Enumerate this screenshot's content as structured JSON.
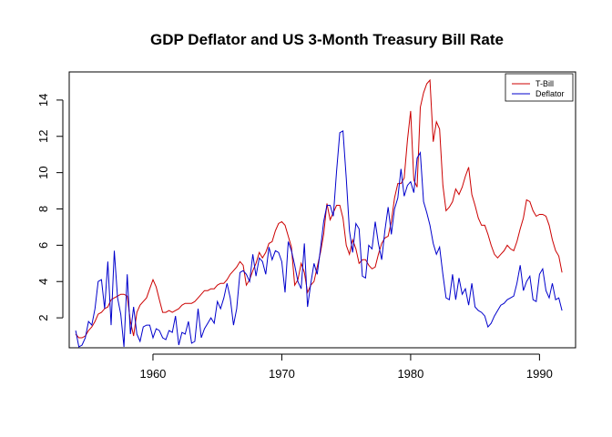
{
  "chart_data": {
    "type": "line",
    "title": "GDP Deflator and US 3-Month Treasury Bill Rate",
    "xlabel": "",
    "ylabel": "",
    "xlim": [
      1953.5,
      1992.8
    ],
    "ylim": [
      0.35,
      15.55
    ],
    "x_ticks": [
      1960,
      1970,
      1980,
      1990
    ],
    "y_ticks": [
      2,
      4,
      6,
      8,
      10,
      12,
      14
    ],
    "legend_position": "top-right",
    "series": [
      {
        "name": "T-Bill",
        "color": "#CC0000",
        "points": [
          [
            1954.0,
            1.1
          ],
          [
            1954.25,
            0.9
          ],
          [
            1954.5,
            0.9
          ],
          [
            1954.75,
            1.0
          ],
          [
            1955.0,
            1.3
          ],
          [
            1955.25,
            1.5
          ],
          [
            1955.5,
            1.8
          ],
          [
            1955.75,
            2.2
          ],
          [
            1956.0,
            2.3
          ],
          [
            1956.25,
            2.5
          ],
          [
            1956.5,
            2.6
          ],
          [
            1956.75,
            3.0
          ],
          [
            1957.0,
            3.1
          ],
          [
            1957.25,
            3.2
          ],
          [
            1957.5,
            3.3
          ],
          [
            1957.75,
            3.3
          ],
          [
            1958.0,
            3.2
          ],
          [
            1958.25,
            1.8
          ],
          [
            1958.5,
            1.0
          ],
          [
            1958.75,
            2.3
          ],
          [
            1959.0,
            2.7
          ],
          [
            1959.25,
            2.9
          ],
          [
            1959.5,
            3.1
          ],
          [
            1959.75,
            3.6
          ],
          [
            1960.0,
            4.1
          ],
          [
            1960.25,
            3.7
          ],
          [
            1960.5,
            3.0
          ],
          [
            1960.75,
            2.3
          ],
          [
            1961.0,
            2.3
          ],
          [
            1961.25,
            2.4
          ],
          [
            1961.5,
            2.3
          ],
          [
            1961.75,
            2.4
          ],
          [
            1962.0,
            2.5
          ],
          [
            1962.25,
            2.7
          ],
          [
            1962.5,
            2.8
          ],
          [
            1962.75,
            2.8
          ],
          [
            1963.0,
            2.8
          ],
          [
            1963.25,
            2.9
          ],
          [
            1963.5,
            3.1
          ],
          [
            1963.75,
            3.3
          ],
          [
            1964.0,
            3.5
          ],
          [
            1964.25,
            3.5
          ],
          [
            1964.5,
            3.6
          ],
          [
            1964.75,
            3.6
          ],
          [
            1965.0,
            3.8
          ],
          [
            1965.25,
            3.9
          ],
          [
            1965.5,
            3.9
          ],
          [
            1965.75,
            4.1
          ],
          [
            1966.0,
            4.4
          ],
          [
            1966.25,
            4.6
          ],
          [
            1966.5,
            4.8
          ],
          [
            1966.75,
            5.1
          ],
          [
            1967.0,
            4.9
          ],
          [
            1967.25,
            3.8
          ],
          [
            1967.5,
            4.1
          ],
          [
            1967.75,
            4.6
          ],
          [
            1968.0,
            5.0
          ],
          [
            1968.25,
            5.6
          ],
          [
            1968.5,
            5.3
          ],
          [
            1968.75,
            5.6
          ],
          [
            1969.0,
            6.1
          ],
          [
            1969.25,
            6.2
          ],
          [
            1969.5,
            6.8
          ],
          [
            1969.75,
            7.2
          ],
          [
            1970.0,
            7.3
          ],
          [
            1970.25,
            7.1
          ],
          [
            1970.5,
            6.5
          ],
          [
            1970.75,
            5.9
          ],
          [
            1971.0,
            3.8
          ],
          [
            1971.25,
            4.1
          ],
          [
            1971.5,
            5.0
          ],
          [
            1971.75,
            4.5
          ],
          [
            1972.0,
            3.4
          ],
          [
            1972.25,
            3.8
          ],
          [
            1972.5,
            4.0
          ],
          [
            1972.75,
            4.8
          ],
          [
            1973.0,
            5.6
          ],
          [
            1973.25,
            6.6
          ],
          [
            1973.5,
            8.3
          ],
          [
            1973.75,
            7.4
          ],
          [
            1974.0,
            7.8
          ],
          [
            1974.25,
            8.2
          ],
          [
            1974.5,
            8.2
          ],
          [
            1974.75,
            7.5
          ],
          [
            1975.0,
            6.0
          ],
          [
            1975.25,
            5.5
          ],
          [
            1975.5,
            6.3
          ],
          [
            1975.75,
            5.8
          ],
          [
            1976.0,
            5.0
          ],
          [
            1976.25,
            5.2
          ],
          [
            1976.5,
            5.2
          ],
          [
            1976.75,
            4.9
          ],
          [
            1977.0,
            4.7
          ],
          [
            1977.25,
            4.8
          ],
          [
            1977.5,
            5.5
          ],
          [
            1977.75,
            6.1
          ],
          [
            1978.0,
            6.4
          ],
          [
            1978.25,
            6.5
          ],
          [
            1978.5,
            7.3
          ],
          [
            1978.75,
            8.6
          ],
          [
            1979.0,
            9.4
          ],
          [
            1979.25,
            9.4
          ],
          [
            1979.5,
            9.7
          ],
          [
            1979.75,
            11.8
          ],
          [
            1980.0,
            13.4
          ],
          [
            1980.25,
            9.6
          ],
          [
            1980.5,
            9.2
          ],
          [
            1980.75,
            13.6
          ],
          [
            1981.0,
            14.4
          ],
          [
            1981.25,
            14.9
          ],
          [
            1981.5,
            15.1
          ],
          [
            1981.75,
            11.7
          ],
          [
            1982.0,
            12.8
          ],
          [
            1982.25,
            12.4
          ],
          [
            1982.5,
            9.3
          ],
          [
            1982.75,
            7.9
          ],
          [
            1983.0,
            8.1
          ],
          [
            1983.25,
            8.4
          ],
          [
            1983.5,
            9.1
          ],
          [
            1983.75,
            8.8
          ],
          [
            1984.0,
            9.2
          ],
          [
            1984.25,
            9.8
          ],
          [
            1984.5,
            10.3
          ],
          [
            1984.75,
            8.8
          ],
          [
            1985.0,
            8.2
          ],
          [
            1985.25,
            7.5
          ],
          [
            1985.5,
            7.1
          ],
          [
            1985.75,
            7.1
          ],
          [
            1986.0,
            6.6
          ],
          [
            1986.25,
            6.0
          ],
          [
            1986.5,
            5.5
          ],
          [
            1986.75,
            5.3
          ],
          [
            1987.0,
            5.5
          ],
          [
            1987.25,
            5.7
          ],
          [
            1987.5,
            6.0
          ],
          [
            1987.75,
            5.8
          ],
          [
            1988.0,
            5.7
          ],
          [
            1988.25,
            6.2
          ],
          [
            1988.5,
            6.9
          ],
          [
            1988.75,
            7.5
          ],
          [
            1989.0,
            8.5
          ],
          [
            1989.25,
            8.4
          ],
          [
            1989.5,
            7.9
          ],
          [
            1989.75,
            7.6
          ],
          [
            1990.0,
            7.7
          ],
          [
            1990.25,
            7.7
          ],
          [
            1990.5,
            7.6
          ],
          [
            1990.75,
            7.1
          ],
          [
            1991.0,
            6.3
          ],
          [
            1991.25,
            5.7
          ],
          [
            1991.5,
            5.4
          ],
          [
            1991.75,
            4.5
          ]
        ]
      },
      {
        "name": "Deflator",
        "color": "#0000CC",
        "points": [
          [
            1954.0,
            1.3
          ],
          [
            1954.25,
            0.4
          ],
          [
            1954.5,
            0.5
          ],
          [
            1954.75,
            0.9
          ],
          [
            1955.0,
            1.8
          ],
          [
            1955.25,
            1.6
          ],
          [
            1955.5,
            2.5
          ],
          [
            1955.75,
            4.0
          ],
          [
            1956.0,
            4.1
          ],
          [
            1956.25,
            2.5
          ],
          [
            1956.5,
            5.1
          ],
          [
            1956.75,
            1.6
          ],
          [
            1957.0,
            5.7
          ],
          [
            1957.25,
            3.1
          ],
          [
            1957.5,
            2.2
          ],
          [
            1957.75,
            0.4
          ],
          [
            1958.0,
            4.4
          ],
          [
            1958.25,
            1.1
          ],
          [
            1958.5,
            2.6
          ],
          [
            1958.75,
            1.1
          ],
          [
            1959.0,
            0.7
          ],
          [
            1959.25,
            1.5
          ],
          [
            1959.5,
            1.6
          ],
          [
            1959.75,
            1.6
          ],
          [
            1960.0,
            0.9
          ],
          [
            1960.25,
            1.4
          ],
          [
            1960.5,
            1.3
          ],
          [
            1960.75,
            0.9
          ],
          [
            1961.0,
            0.8
          ],
          [
            1961.25,
            1.3
          ],
          [
            1961.5,
            1.2
          ],
          [
            1961.75,
            2.1
          ],
          [
            1962.0,
            0.5
          ],
          [
            1962.25,
            1.2
          ],
          [
            1962.5,
            1.1
          ],
          [
            1962.75,
            1.8
          ],
          [
            1963.0,
            0.6
          ],
          [
            1963.25,
            0.7
          ],
          [
            1963.5,
            2.5
          ],
          [
            1963.75,
            0.9
          ],
          [
            1964.0,
            1.4
          ],
          [
            1964.25,
            1.7
          ],
          [
            1964.5,
            2.0
          ],
          [
            1964.75,
            1.7
          ],
          [
            1965.0,
            2.9
          ],
          [
            1965.25,
            2.5
          ],
          [
            1965.5,
            3.1
          ],
          [
            1965.75,
            3.9
          ],
          [
            1966.0,
            3.1
          ],
          [
            1966.25,
            1.6
          ],
          [
            1966.5,
            2.5
          ],
          [
            1966.75,
            4.5
          ],
          [
            1967.0,
            4.6
          ],
          [
            1967.25,
            4.4
          ],
          [
            1967.5,
            4.0
          ],
          [
            1967.75,
            5.5
          ],
          [
            1968.0,
            4.3
          ],
          [
            1968.25,
            5.3
          ],
          [
            1968.5,
            5.1
          ],
          [
            1968.75,
            4.4
          ],
          [
            1969.0,
            5.9
          ],
          [
            1969.25,
            5.2
          ],
          [
            1969.5,
            5.7
          ],
          [
            1969.75,
            5.6
          ],
          [
            1970.0,
            5.1
          ],
          [
            1970.25,
            3.4
          ],
          [
            1970.5,
            6.2
          ],
          [
            1970.75,
            5.7
          ],
          [
            1971.0,
            4.9
          ],
          [
            1971.25,
            4.0
          ],
          [
            1971.5,
            3.6
          ],
          [
            1971.75,
            6.1
          ],
          [
            1972.0,
            2.6
          ],
          [
            1972.25,
            3.9
          ],
          [
            1972.5,
            5.0
          ],
          [
            1972.75,
            4.4
          ],
          [
            1973.0,
            5.8
          ],
          [
            1973.25,
            7.3
          ],
          [
            1973.5,
            8.2
          ],
          [
            1973.75,
            8.2
          ],
          [
            1974.0,
            7.6
          ],
          [
            1974.25,
            10.1
          ],
          [
            1974.5,
            12.2
          ],
          [
            1974.75,
            12.3
          ],
          [
            1975.0,
            9.7
          ],
          [
            1975.25,
            6.8
          ],
          [
            1975.5,
            5.6
          ],
          [
            1975.75,
            7.2
          ],
          [
            1976.0,
            6.9
          ],
          [
            1976.25,
            4.3
          ],
          [
            1976.5,
            4.2
          ],
          [
            1976.75,
            6.0
          ],
          [
            1977.0,
            5.8
          ],
          [
            1977.25,
            7.3
          ],
          [
            1977.5,
            6.1
          ],
          [
            1977.75,
            5.2
          ],
          [
            1978.0,
            6.8
          ],
          [
            1978.25,
            8.1
          ],
          [
            1978.5,
            6.6
          ],
          [
            1978.75,
            8.0
          ],
          [
            1979.0,
            8.6
          ],
          [
            1979.25,
            10.2
          ],
          [
            1979.5,
            8.7
          ],
          [
            1979.75,
            9.3
          ],
          [
            1980.0,
            9.5
          ],
          [
            1980.25,
            8.9
          ],
          [
            1980.5,
            10.8
          ],
          [
            1980.75,
            11.1
          ],
          [
            1981.0,
            8.4
          ],
          [
            1981.25,
            7.8
          ],
          [
            1981.5,
            7.1
          ],
          [
            1981.75,
            6.1
          ],
          [
            1982.0,
            5.5
          ],
          [
            1982.25,
            5.9
          ],
          [
            1982.5,
            4.4
          ],
          [
            1982.75,
            3.1
          ],
          [
            1983.0,
            3.0
          ],
          [
            1983.25,
            4.4
          ],
          [
            1983.5,
            3.0
          ],
          [
            1983.75,
            4.2
          ],
          [
            1984.0,
            3.3
          ],
          [
            1984.25,
            3.6
          ],
          [
            1984.5,
            2.7
          ],
          [
            1984.75,
            3.9
          ],
          [
            1985.0,
            2.6
          ],
          [
            1985.25,
            2.4
          ],
          [
            1985.5,
            2.3
          ],
          [
            1985.75,
            2.1
          ],
          [
            1986.0,
            1.5
          ],
          [
            1986.25,
            1.7
          ],
          [
            1986.5,
            2.1
          ],
          [
            1986.75,
            2.4
          ],
          [
            1987.0,
            2.7
          ],
          [
            1987.25,
            2.8
          ],
          [
            1987.5,
            3.0
          ],
          [
            1987.75,
            3.1
          ],
          [
            1988.0,
            3.2
          ],
          [
            1988.25,
            3.9
          ],
          [
            1988.5,
            4.9
          ],
          [
            1988.75,
            3.5
          ],
          [
            1989.0,
            4.0
          ],
          [
            1989.25,
            4.3
          ],
          [
            1989.5,
            3.0
          ],
          [
            1989.75,
            2.9
          ],
          [
            1990.0,
            4.4
          ],
          [
            1990.25,
            4.7
          ],
          [
            1990.5,
            3.5
          ],
          [
            1990.75,
            3.1
          ],
          [
            1991.0,
            3.9
          ],
          [
            1991.25,
            3.0
          ],
          [
            1991.5,
            3.1
          ],
          [
            1991.75,
            2.4
          ]
        ]
      }
    ]
  }
}
